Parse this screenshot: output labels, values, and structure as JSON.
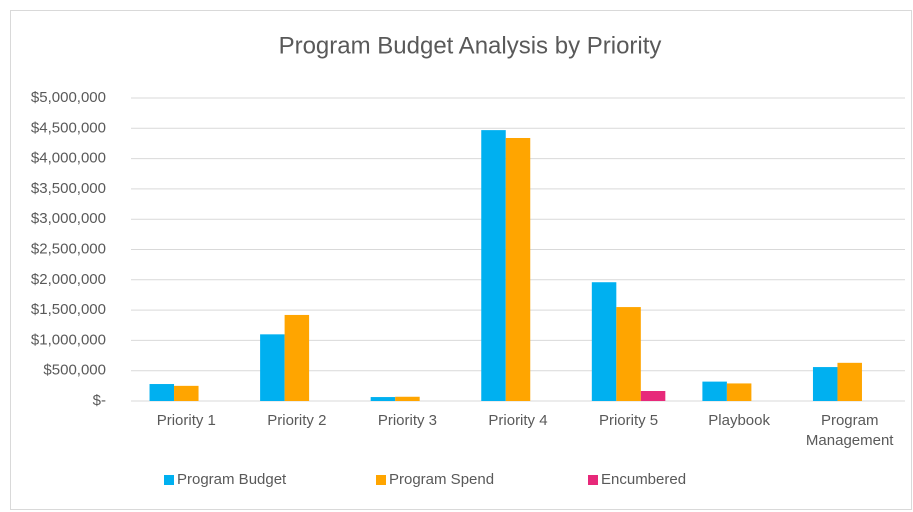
{
  "chart_data": {
    "type": "bar",
    "title": "Program Budget Analysis by Priority",
    "categories": [
      "Priority 1",
      "Priority 2",
      "Priority 3",
      "Priority 4",
      "Priority 5",
      "Playbook",
      "Program Management"
    ],
    "series": [
      {
        "name": "Program Budget",
        "color": "#00b0f0",
        "values": [
          280000,
          1100000,
          65000,
          4470000,
          1960000,
          320000,
          560000
        ]
      },
      {
        "name": "Program Spend",
        "color": "#ffa500",
        "values": [
          250000,
          1420000,
          70000,
          4340000,
          1550000,
          290000,
          630000
        ]
      },
      {
        "name": "Encumbered",
        "color": "#e7297a",
        "values": [
          0,
          0,
          0,
          0,
          165000,
          0,
          0
        ]
      }
    ],
    "ylim": [
      0,
      5000000
    ],
    "yticks": [
      {
        "value": 0,
        "label": "$-"
      },
      {
        "value": 500000,
        "label": "$500,000"
      },
      {
        "value": 1000000,
        "label": "$1,000,000"
      },
      {
        "value": 1500000,
        "label": "$1,500,000"
      },
      {
        "value": 2000000,
        "label": "$2,000,000"
      },
      {
        "value": 2500000,
        "label": "$2,500,000"
      },
      {
        "value": 3000000,
        "label": "$3,000,000"
      },
      {
        "value": 3500000,
        "label": "$3,500,000"
      },
      {
        "value": 4000000,
        "label": "$4,000,000"
      },
      {
        "value": 4500000,
        "label": "$4,500,000"
      },
      {
        "value": 5000000,
        "label": "$5,000,000"
      }
    ],
    "grid": true,
    "legend": "bottom"
  }
}
